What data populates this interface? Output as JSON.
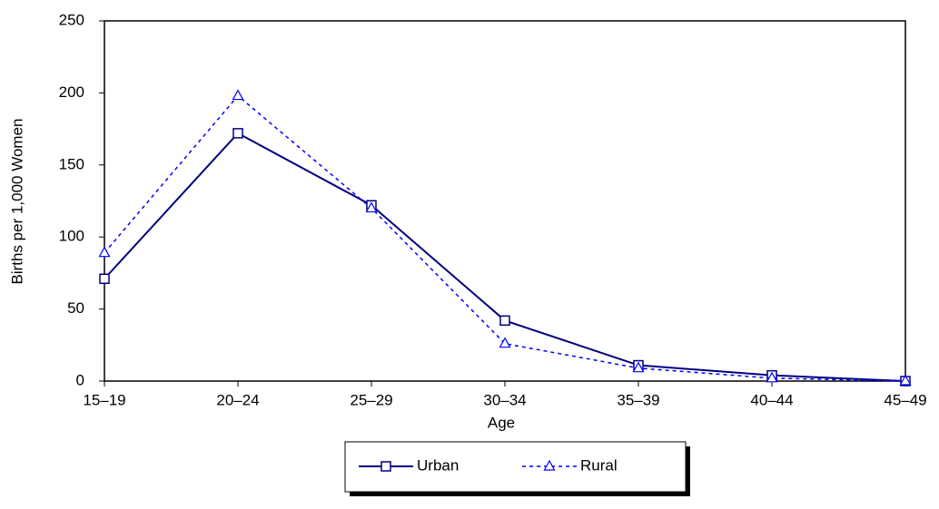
{
  "chart_data": {
    "type": "line",
    "x_label": "Age",
    "y_label": "Births per 1,000 Women",
    "categories": [
      "15–19",
      "20–24",
      "25–29",
      "30–34",
      "35–39",
      "40–44",
      "45–49"
    ],
    "series": [
      {
        "name": "Urban",
        "color": "#000080",
        "dash": false,
        "marker": "square",
        "values": [
          71,
          172,
          122,
          42,
          11,
          4,
          0
        ]
      },
      {
        "name": "Rural",
        "color": "#0000ff",
        "dash": true,
        "marker": "triangle",
        "values": [
          89,
          198,
          120,
          26,
          9,
          2,
          0
        ]
      }
    ],
    "ylim": [
      0,
      250
    ],
    "yticks": [
      0,
      50,
      100,
      150,
      200,
      250
    ],
    "grid": false,
    "legend": "bottom"
  }
}
